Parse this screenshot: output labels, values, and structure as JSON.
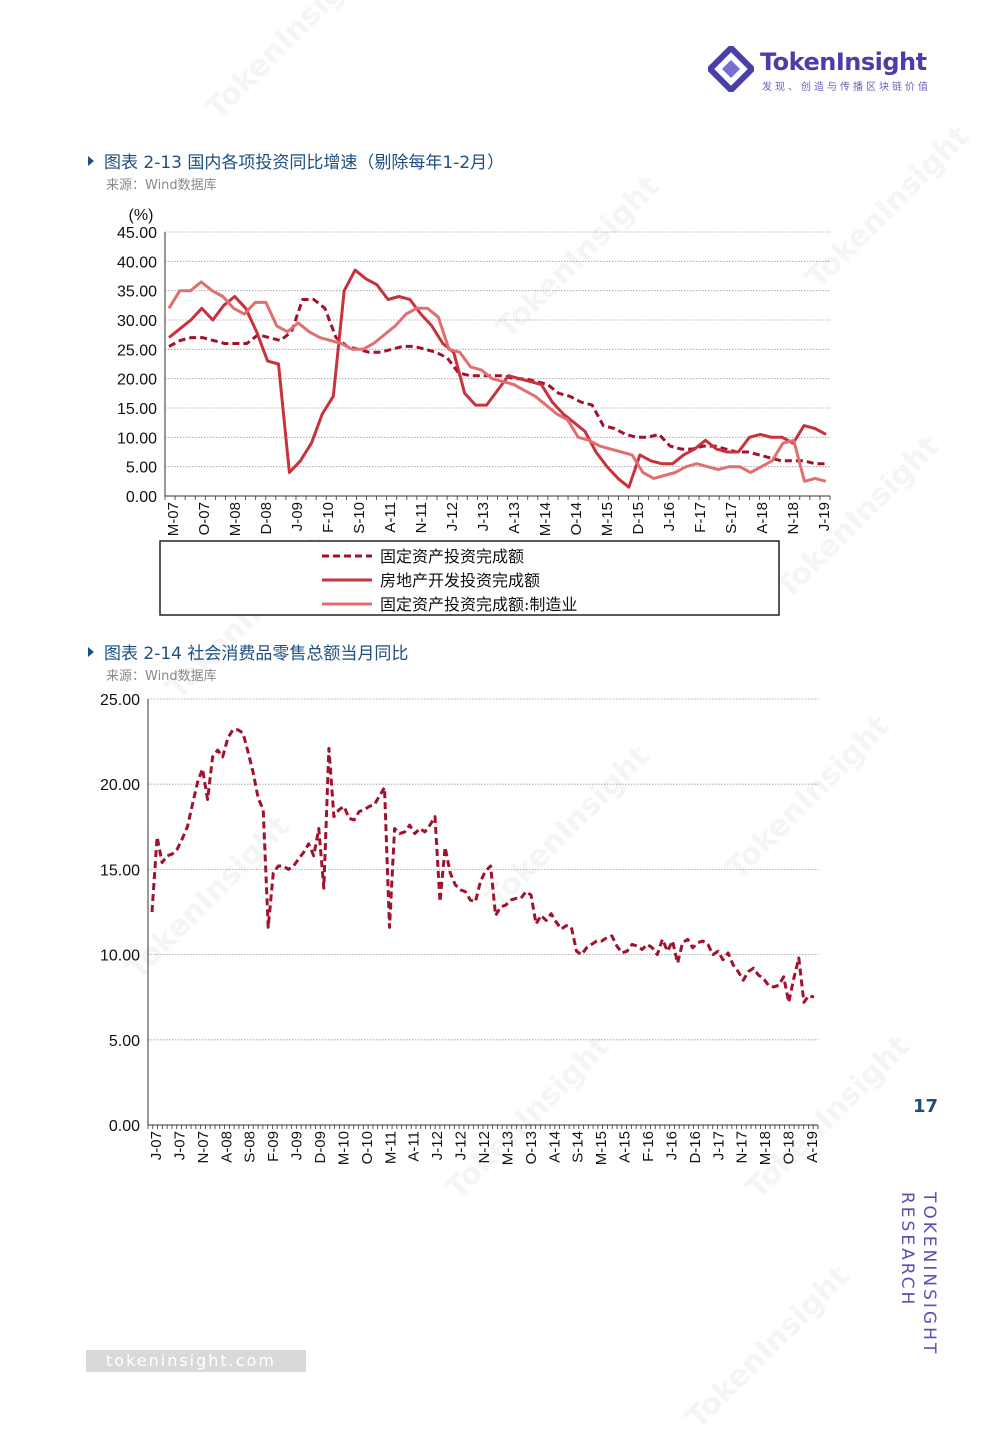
{
  "brand": {
    "name": "TokenInsight",
    "tagline": "发现、创造与传播区块链价值",
    "side_text_1": "TOKENINSIGHT",
    "side_text_2": "RESEARCH",
    "website": "tokeninsight.com",
    "watermark": "TokenInsight",
    "colors": {
      "brand": "#4a3ea8",
      "title": "#1d4f80"
    }
  },
  "page_number": "17",
  "figure1": {
    "title": "图表 2-13 国内各项投资同比增速（剔除每年1-2月）",
    "source": "来源：Wind数据库",
    "chart_data": {
      "type": "line",
      "ylabel": "(%)",
      "ylim": [
        0,
        45
      ],
      "yticks": [
        "45.00",
        "40.00",
        "35.00",
        "30.00",
        "25.00",
        "20.00",
        "15.00",
        "10.00",
        "5.00",
        "0.00"
      ],
      "xticks": [
        "M-07",
        "O-07",
        "M-08",
        "D-08",
        "J-09",
        "F-10",
        "S-10",
        "A-11",
        "N-11",
        "J-12",
        "J-13",
        "A-13",
        "M-14",
        "O-14",
        "M-15",
        "D-15",
        "J-16",
        "F-17",
        "S-17",
        "A-18",
        "N-18",
        "J-19"
      ],
      "legend_placement": "bottom",
      "series": [
        {
          "name": "固定资产投资完成额",
          "style": "dashed",
          "color": "#a0122e",
          "values": [
            25.5,
            26.5,
            27,
            27,
            26.5,
            26,
            26,
            26,
            27.5,
            27,
            26.5,
            28,
            33.5,
            33.5,
            32,
            27,
            25.5,
            25,
            24.5,
            24.5,
            25,
            25.5,
            25.5,
            25,
            24.5,
            23.5,
            21,
            20.5,
            20.5,
            20.5,
            20.5,
            20,
            20,
            19.5,
            19,
            17.5,
            17,
            16,
            15.5,
            12,
            11.5,
            10.5,
            10,
            10,
            10.5,
            8.5,
            8,
            8,
            8.5,
            8.5,
            8,
            7.5,
            7.5,
            7,
            6.5,
            6,
            6,
            6,
            5.5,
            5.5
          ]
        },
        {
          "name": "房地产开发投资完成额",
          "style": "solid",
          "color": "#c8323c",
          "values": [
            27,
            28.5,
            30,
            32,
            30,
            32.5,
            34,
            32,
            28,
            23,
            22.5,
            4,
            6,
            9,
            14,
            17,
            35,
            38.5,
            37,
            36,
            33.5,
            34,
            33.5,
            31,
            29,
            26,
            24.5,
            17.5,
            15.5,
            15.5,
            18,
            20.5,
            20,
            19.5,
            19,
            16,
            14,
            12.5,
            11,
            7.5,
            5,
            3,
            1.5,
            7,
            6,
            5.5,
            5.5,
            7,
            8,
            9.5,
            8,
            7.5,
            7.5,
            10,
            10.5,
            10,
            10,
            9,
            12,
            11.5,
            10.5
          ]
        },
        {
          "name": "固定资产投资完成额:制造业",
          "style": "solid",
          "color": "#e07070",
          "values": [
            32,
            35,
            35,
            36.5,
            35,
            34,
            32,
            31,
            33,
            33,
            29,
            28,
            29.5,
            28,
            27,
            26.5,
            26,
            25,
            25,
            26,
            27.5,
            29,
            31,
            32,
            32,
            30.5,
            25,
            24.5,
            22,
            21.5,
            20,
            19.5,
            19,
            18,
            17,
            15.5,
            14,
            13,
            10,
            9.5,
            8.5,
            8,
            7.5,
            7,
            4,
            3,
            3.5,
            4,
            5,
            5.5,
            5,
            4.5,
            5,
            5,
            4,
            5,
            6,
            9,
            9.5,
            2.5,
            3,
            2.5
          ]
        }
      ]
    }
  },
  "figure2": {
    "title": "图表 2-14 社会消费品零售总额当月同比",
    "source": "来源：Wind数据库",
    "chart_data": {
      "type": "line",
      "ylim": [
        0,
        25
      ],
      "yticks": [
        "25.00",
        "20.00",
        "15.00",
        "10.00",
        "5.00",
        "0.00"
      ],
      "xticks": [
        "J-07",
        "J-07",
        "N-07",
        "A-08",
        "S-08",
        "F-09",
        "J-09",
        "D-09",
        "M-10",
        "O-10",
        "M-11",
        "A-11",
        "J-12",
        "J-12",
        "N-12",
        "M-13",
        "O-13",
        "A-14",
        "S-14",
        "M-15",
        "A-15",
        "F-16",
        "J-16",
        "D-16",
        "J-17",
        "N-17",
        "M-18",
        "O-18",
        "A-19"
      ],
      "series": [
        {
          "name": "",
          "style": "dashed",
          "color": "#a0122e",
          "values": [
            12.5,
            16.9,
            15.4,
            15.8,
            15.9,
            16.2,
            16.8,
            17.5,
            18.8,
            20.1,
            20.9,
            19.1,
            21.6,
            22.0,
            21.6,
            22.7,
            23.2,
            23.2,
            23.0,
            21.9,
            20.7,
            19.2,
            18.5,
            11.6,
            14.8,
            15.2,
            15.2,
            15.0,
            15.2,
            15.6,
            16.0,
            16.5,
            15.8,
            17.4,
            13.9,
            22.1,
            18.1,
            18.5,
            18.7,
            18.0,
            17.9,
            18.4,
            18.5,
            18.7,
            18.8,
            19.3,
            19.8,
            11.6,
            17.4,
            17.1,
            17.2,
            17.6,
            17.1,
            17.4,
            17.2,
            17.6,
            18.1,
            13.1,
            16.3,
            14.8,
            14.1,
            13.8,
            13.7,
            13.2,
            13.1,
            14.3,
            14.9,
            15.2,
            12.3,
            12.8,
            12.9,
            13.2,
            13.3,
            13.3,
            13.7,
            13.5,
            11.8,
            12.3,
            12.0,
            12.4,
            11.9,
            11.5,
            11.7,
            11.6,
            10.2,
            10.0,
            10.4,
            10.6,
            10.8,
            10.8,
            11.0,
            11.1,
            10.5,
            10.1,
            10.2,
            10.6,
            10.5,
            10.3,
            10.6,
            10.4,
            10.0,
            10.9,
            10.2,
            10.8,
            9.5,
            10.7,
            10.9,
            10.4,
            10.7,
            10.8,
            10.6,
            10.0,
            10.2,
            9.7,
            10.1,
            9.4,
            9.0,
            8.5,
            9.0,
            9.2,
            8.8,
            8.6,
            8.2,
            8.1,
            8.2,
            8.7,
            7.2,
            8.6,
            9.8,
            7.2,
            7.6,
            7.5
          ]
        }
      ]
    }
  }
}
